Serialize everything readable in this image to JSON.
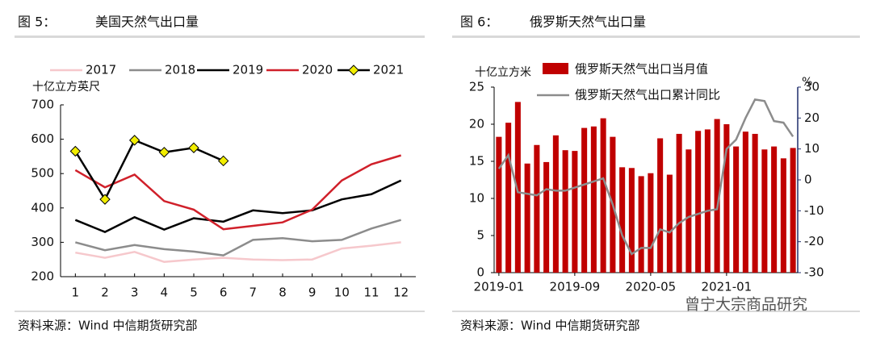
{
  "chart_data": [
    {
      "type": "line",
      "figure": "图 5：",
      "title": "美国天然气出口量",
      "ylabel": "十亿立方英尺",
      "x": [
        1,
        2,
        3,
        4,
        5,
        6,
        7,
        8,
        9,
        10,
        11,
        12
      ],
      "xlim": [
        0.5,
        12.5
      ],
      "xticks": [
        1,
        2,
        3,
        4,
        5,
        6,
        7,
        8,
        9,
        10,
        11,
        12
      ],
      "ylim": [
        200,
        700
      ],
      "yticks": [
        200,
        300,
        400,
        500,
        600,
        700
      ],
      "series": [
        {
          "name": "2017",
          "color": "#f6c8cc",
          "values": [
            270,
            255,
            272,
            243,
            250,
            255,
            250,
            248,
            250,
            282,
            290,
            300
          ]
        },
        {
          "name": "2018",
          "color": "#8c8c8c",
          "values": [
            300,
            277,
            292,
            280,
            273,
            262,
            307,
            312,
            303,
            307,
            340,
            365
          ]
        },
        {
          "name": "2019",
          "color": "#000000",
          "values": [
            365,
            330,
            373,
            337,
            370,
            360,
            393,
            385,
            393,
            425,
            440,
            480
          ]
        },
        {
          "name": "2020",
          "color": "#d0202a",
          "values": [
            510,
            460,
            497,
            420,
            395,
            338,
            348,
            358,
            395,
            480,
            527,
            553
          ]
        },
        {
          "name": "2021",
          "color": "#000000",
          "marker": "diamond",
          "marker_color": "#f2ee00",
          "values": [
            565,
            425,
            597,
            562,
            575,
            537,
            null,
            null,
            null,
            null,
            null,
            null
          ]
        }
      ],
      "source": "资料来源：Wind 中信期货研究部"
    },
    {
      "type": "bar",
      "figure": "图 6：",
      "title": "俄罗斯天然气出口量",
      "ylabel": "十亿立方米",
      "y2label": "%",
      "categories": [
        "2019-01",
        null,
        null,
        null,
        null,
        null,
        null,
        null,
        "2019-09",
        null,
        null,
        null,
        null,
        null,
        null,
        null,
        "2020-05",
        null,
        null,
        null,
        null,
        null,
        null,
        null,
        "2021-01",
        null,
        null,
        null,
        null,
        null,
        null,
        null
      ],
      "ylim": [
        0,
        25
      ],
      "yticks": [
        0,
        5,
        10,
        15,
        20,
        25
      ],
      "y2lim": [
        -30,
        30
      ],
      "y2ticks": [
        -30,
        -20,
        -10,
        0,
        10,
        20,
        30
      ],
      "series": [
        {
          "name": "俄罗斯天然气出口当月值",
          "color": "#c00000",
          "values": [
            18.3,
            20.2,
            23,
            14.7,
            17.2,
            14.9,
            18.5,
            16.5,
            16.4,
            19.5,
            19.7,
            20.8,
            18.3,
            14.2,
            14.1,
            13,
            13.4,
            18.1,
            13.2,
            18.7,
            16.6,
            19.1,
            19.3,
            20.7,
            20,
            17,
            19,
            18.7,
            16.6,
            17,
            15.4,
            16.8
          ]
        },
        {
          "name": "俄罗斯天然气出口累计同比",
          "color": "#8c8c8c",
          "axis": "y2",
          "values": [
            3.6,
            8,
            -4,
            -4.5,
            -5,
            -3,
            -3.5,
            -3.5,
            -2.5,
            -1.5,
            -0.5,
            0.5,
            -8,
            -18,
            -24,
            -22,
            -22,
            -16,
            -17,
            -14,
            -12,
            -11,
            -10,
            -9.5,
            10,
            13,
            20,
            26,
            25.5,
            19,
            18.5,
            14
          ]
        }
      ],
      "source": "资料来源：Wind 中信期货研究部"
    }
  ],
  "watermark": "曾宁大宗商品研究"
}
